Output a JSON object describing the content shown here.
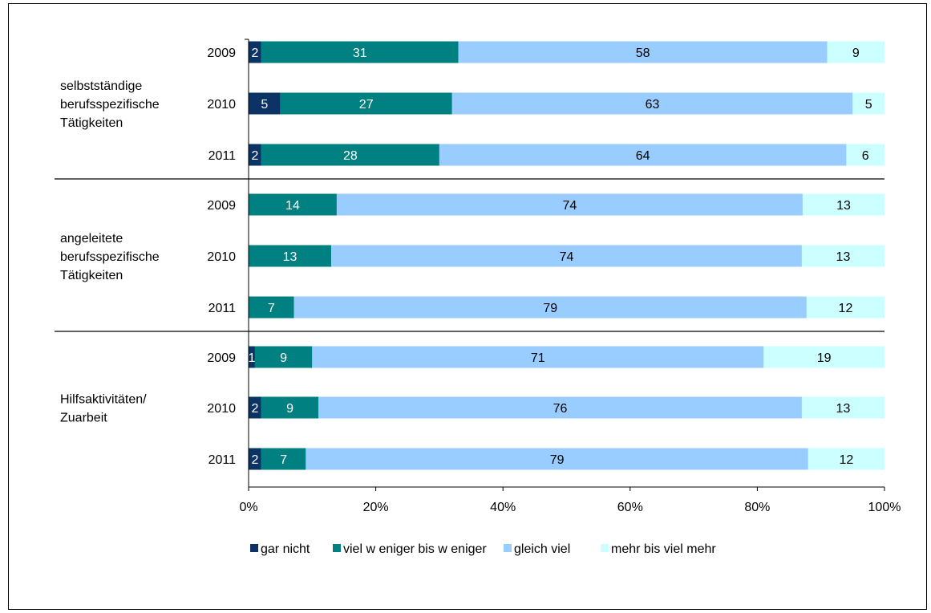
{
  "chart_data": {
    "type": "bar",
    "orientation": "horizontal",
    "stacked": "percent",
    "groups": [
      {
        "label": "selbstständige\nberufsspezifische\nTätigkeiten",
        "rows": [
          {
            "category": "2009",
            "values": [
              2,
              31,
              58,
              9
            ]
          },
          {
            "category": "2010",
            "values": [
              5,
              27,
              63,
              5
            ]
          },
          {
            "category": "2011",
            "values": [
              2,
              28,
              64,
              6
            ]
          }
        ]
      },
      {
        "label": "angeleitete\nberufsspezifische\nTätigkeiten",
        "rows": [
          {
            "category": "2009",
            "values": [
              0,
              14,
              74,
              13
            ]
          },
          {
            "category": "2010",
            "values": [
              0,
              13,
              74,
              13
            ]
          },
          {
            "category": "2011",
            "values": [
              0,
              7,
              79,
              12
            ]
          }
        ]
      },
      {
        "label": "Hilfsaktivitäten/\nZuarbeit",
        "rows": [
          {
            "category": "2009",
            "values": [
              1,
              9,
              71,
              19
            ]
          },
          {
            "category": "2010",
            "values": [
              2,
              9,
              76,
              13
            ]
          },
          {
            "category": "2011",
            "values": [
              2,
              7,
              79,
              12
            ]
          }
        ]
      }
    ],
    "series": [
      {
        "name": "gar nicht",
        "color": "#0b3366",
        "label_color": "#ffffff"
      },
      {
        "name": "viel w eniger bis w eniger",
        "color": "#008080",
        "label_color": "#ffffff"
      },
      {
        "name": "gleich viel",
        "color": "#99ccff",
        "label_color": "#000000"
      },
      {
        "name": "mehr bis viel mehr",
        "color": "#ccffff",
        "label_color": "#000000"
      }
    ],
    "xlim": [
      0,
      100
    ],
    "xticks": [
      "0%",
      "20%",
      "40%",
      "60%",
      "80%",
      "100%"
    ],
    "grid": false,
    "legend_position": "bottom"
  }
}
